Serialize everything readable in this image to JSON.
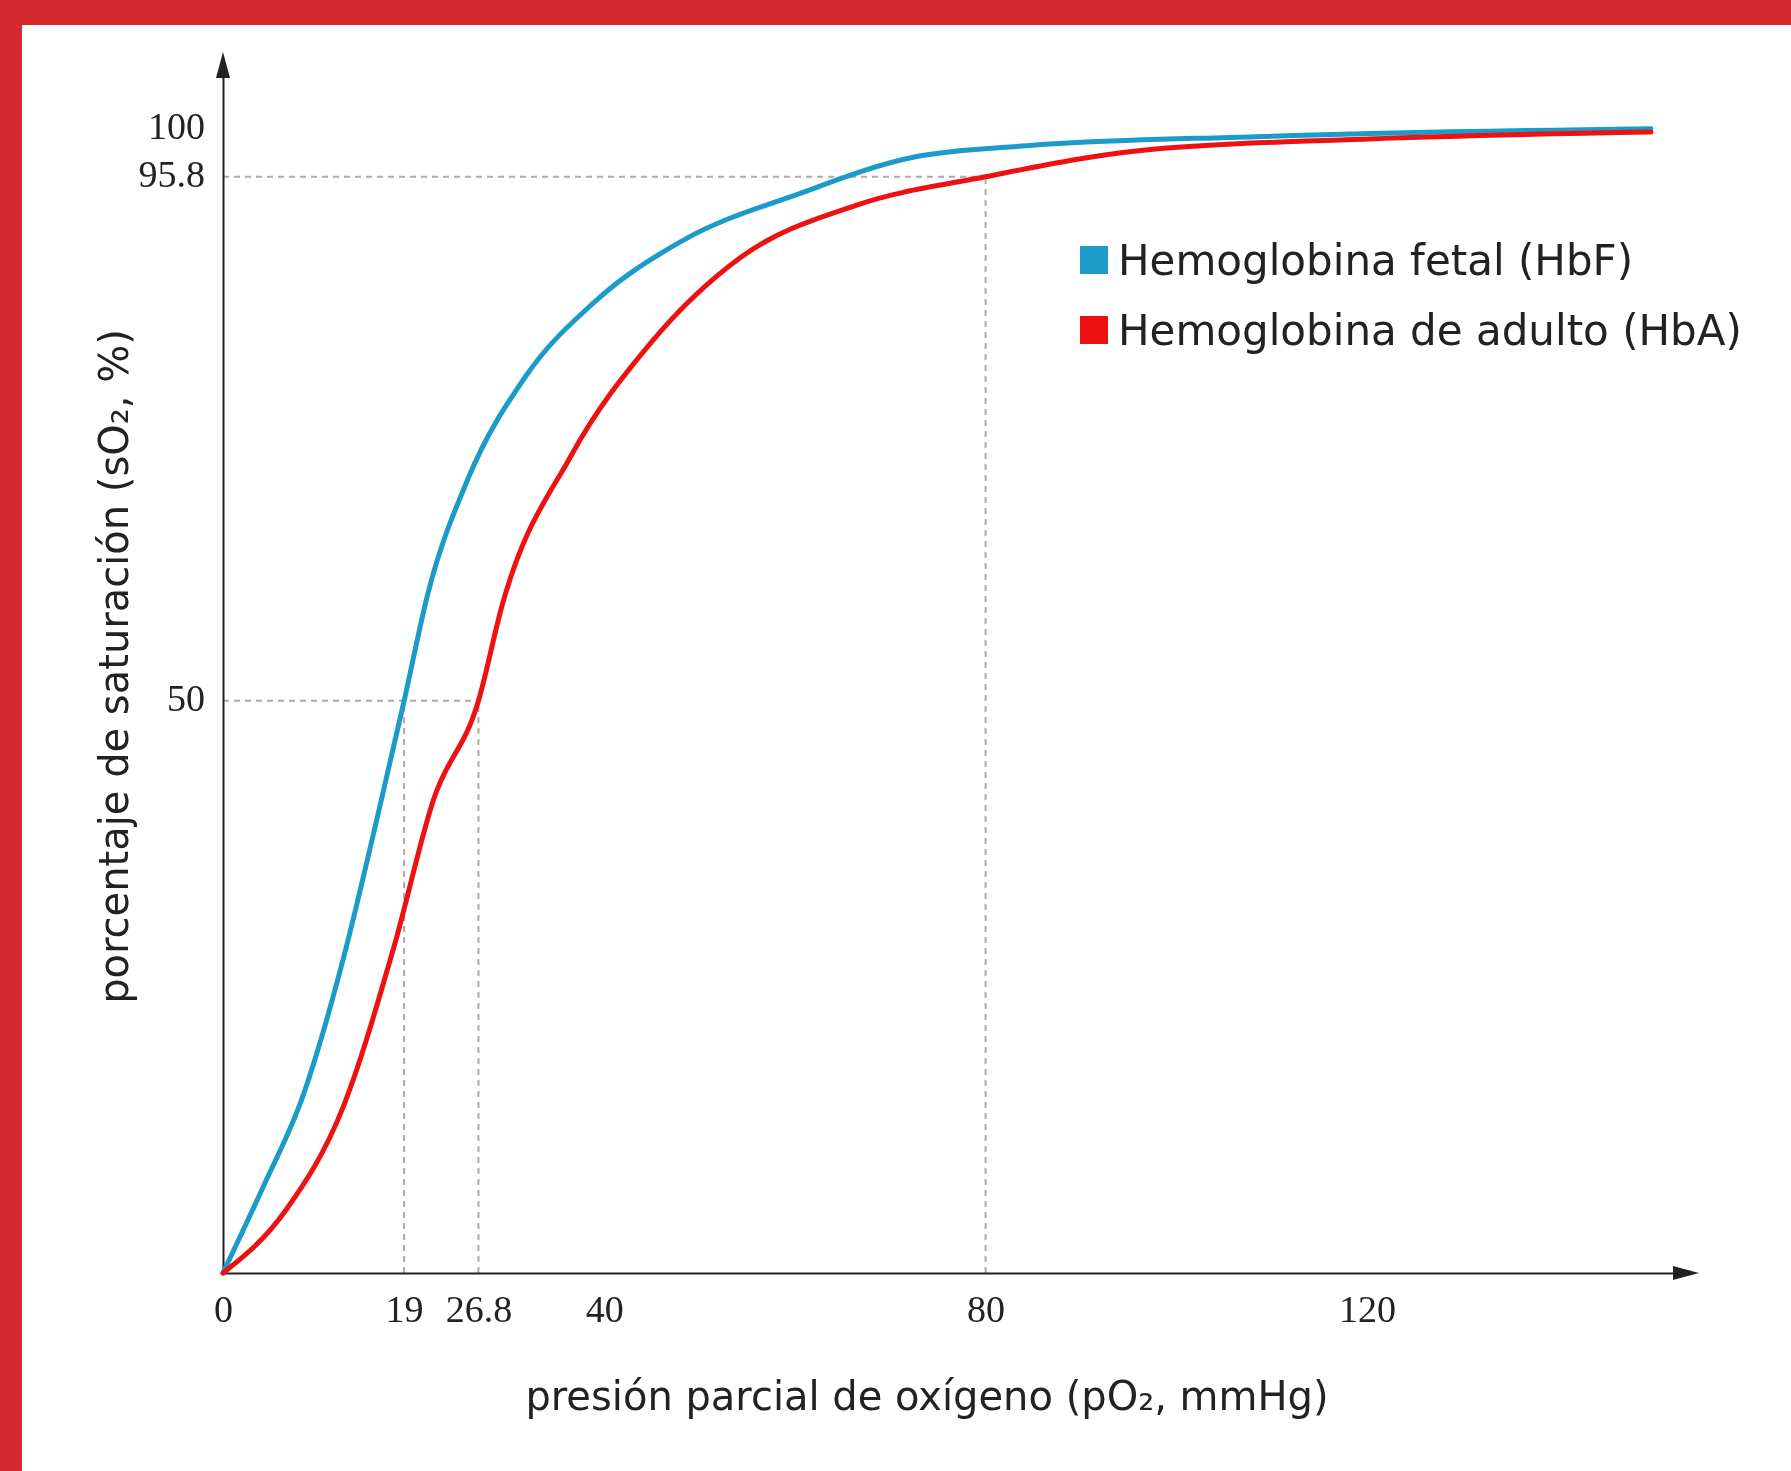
{
  "chart_data": {
    "type": "line",
    "xlabel": "presión parcial de oxígeno (pO₂, mmHg)",
    "ylabel": "porcentaje de saturación (sO₂, %)",
    "xlim": [
      0,
      154
    ],
    "ylim": [
      0,
      106
    ],
    "xticks": [
      0,
      19,
      26.8,
      40,
      80,
      120
    ],
    "yticks": [
      50,
      95.8,
      100
    ],
    "grid": false,
    "legend": "top right",
    "marker": "none",
    "line_style": "solid",
    "ref_lines": [
      {
        "axis": "y",
        "value": 95.8,
        "color": "#b0a8a8",
        "line_style": "dashed"
      },
      {
        "axis": "y",
        "value": 50,
        "color": "#b0a8a8",
        "line_style": "dashed"
      },
      {
        "axis": "x",
        "value": 19,
        "color": "#b0a8a8",
        "line_style": "dashed"
      },
      {
        "axis": "x",
        "value": 26.8,
        "color": "#b0a8a8",
        "line_style": "dashed"
      },
      {
        "axis": "x",
        "value": 80,
        "color": "#b0a8a8",
        "line_style": "dashed"
      }
    ],
    "series": [
      {
        "name": "Hemoglobina fetal (HbF)",
        "color": "#1a9bc8",
        "x": [
          0,
          4.2,
          8.4,
          12.6,
          16.1,
          19,
          21.5,
          25.7,
          31.7,
          38.9,
          48.4,
          60.4,
          72.4,
          84.3,
          108.3,
          149.8
        ],
        "values": [
          0,
          7.5,
          15.5,
          27.4,
          39.5,
          50,
          59.4,
          69.4,
          78.3,
          84.8,
          90.3,
          94.3,
          97.5,
          98.5,
          99.3,
          100
        ]
      },
      {
        "name": "Hemoglobina de adulto (HbA)",
        "color": "#ee1111",
        "x": [
          0,
          6.6,
          12.6,
          17.9,
          22.1,
          26.8,
          29.3,
          36.5,
          44.9,
          54.4,
          66.4,
          80,
          96.3,
          120.2,
          149.8
        ],
        "values": [
          0,
          5.5,
          14.5,
          28.4,
          41.4,
          50,
          58.4,
          71.4,
          81.3,
          88.8,
          93.3,
          95.8,
          98.1,
          99.1,
          99.7
        ]
      }
    ]
  }
}
